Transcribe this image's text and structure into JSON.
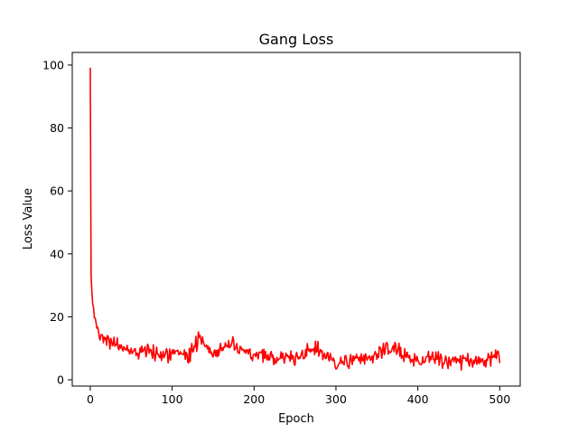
{
  "chart_data": {
    "type": "line",
    "title": "Gang Loss",
    "xlabel": "Epoch",
    "ylabel": "Loss Value",
    "xlim": [
      -22,
      525
    ],
    "ylim": [
      -2,
      104
    ],
    "xticks": [
      0,
      100,
      200,
      300,
      400,
      500
    ],
    "yticks": [
      0,
      20,
      40,
      60,
      80,
      100
    ],
    "grid": false,
    "colors": {
      "series": "#ff0000"
    },
    "series": [
      {
        "name": "",
        "x": [
          0,
          1,
          2,
          3,
          4,
          5,
          6,
          7,
          8,
          9,
          10,
          12,
          15,
          20,
          25,
          30,
          40,
          50,
          60,
          80,
          100,
          120,
          133,
          150,
          165,
          200,
          220,
          250,
          275,
          300,
          340,
          370,
          400,
          420,
          450,
          480,
          497,
          500
        ],
        "y": [
          99,
          33,
          28,
          24,
          22,
          20,
          19,
          18,
          17,
          16,
          16,
          15,
          14,
          13,
          12,
          11,
          10,
          9.5,
          9,
          8.5,
          8,
          7.5,
          13.5,
          8,
          11,
          8,
          7,
          7,
          10,
          5,
          7,
          10,
          6,
          7,
          6,
          6,
          8.5,
          7
        ],
        "noise": 1.5
      }
    ]
  }
}
